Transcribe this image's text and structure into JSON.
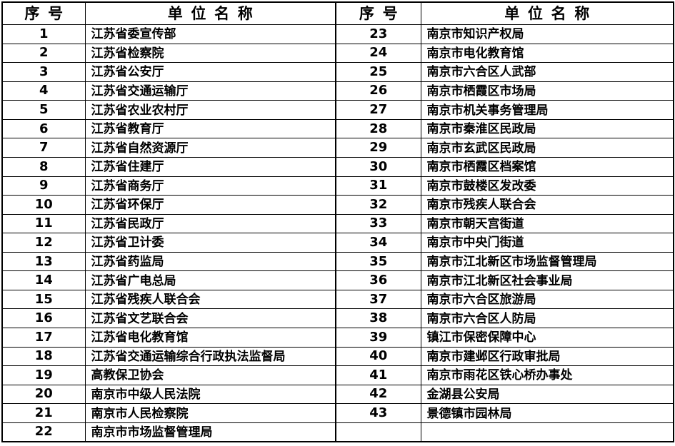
{
  "page": {
    "background_color": "#ffffff",
    "border_color": "#000000",
    "text_color": "#000000"
  },
  "table": {
    "header": {
      "seq_label": "序  号",
      "unit_label": "单  位  名  称"
    },
    "rows": [
      {
        "l_no": "1",
        "l_name": "江苏省委宣传部",
        "r_no": "23",
        "r_name": "南京市知识产权局"
      },
      {
        "l_no": "2",
        "l_name": "江苏省检察院",
        "r_no": "24",
        "r_name": "南京市电化教育馆"
      },
      {
        "l_no": "3",
        "l_name": "江苏省公安厅",
        "r_no": "25",
        "r_name": "南京市六合区人武部"
      },
      {
        "l_no": "4",
        "l_name": "江苏省交通运输厅",
        "r_no": "26",
        "r_name": "南京市栖霞区市场局"
      },
      {
        "l_no": "5",
        "l_name": "江苏省农业农村厅",
        "r_no": "27",
        "r_name": "南京市机关事务管理局"
      },
      {
        "l_no": "6",
        "l_name": "江苏省教育厅",
        "r_no": "28",
        "r_name": "南京市秦淮区民政局"
      },
      {
        "l_no": "7",
        "l_name": "江苏省自然资源厅",
        "r_no": "29",
        "r_name": "南京市玄武区民政局"
      },
      {
        "l_no": "8",
        "l_name": "江苏省住建厅",
        "r_no": "30",
        "r_name": "南京市栖霞区档案馆"
      },
      {
        "l_no": "9",
        "l_name": "江苏省商务厅",
        "r_no": "31",
        "r_name": "南京市鼓楼区发改委"
      },
      {
        "l_no": "10",
        "l_name": "江苏省环保厅",
        "r_no": "32",
        "r_name": "南京市残疾人联合会"
      },
      {
        "l_no": "11",
        "l_name": "江苏省民政厅",
        "r_no": "33",
        "r_name": "南京市朝天宫街道"
      },
      {
        "l_no": "12",
        "l_name": "江苏省卫计委",
        "r_no": "34",
        "r_name": "南京市中央门街道"
      },
      {
        "l_no": "13",
        "l_name": "江苏省药监局",
        "r_no": "35",
        "r_name": "南京市江北新区市场监督管理局"
      },
      {
        "l_no": "14",
        "l_name": "江苏省广电总局",
        "r_no": "36",
        "r_name": "南京市江北新区社会事业局"
      },
      {
        "l_no": "15",
        "l_name": "江苏省残疾人联合会",
        "r_no": "37",
        "r_name": "南京市六合区旅游局"
      },
      {
        "l_no": "16",
        "l_name": "江苏省文艺联合会",
        "r_no": "38",
        "r_name": "南京市六合区人防局"
      },
      {
        "l_no": "17",
        "l_name": "江苏省电化教育馆",
        "r_no": "39",
        "r_name": "镇江市保密保障中心"
      },
      {
        "l_no": "18",
        "l_name": "江苏省交通运输综合行政执法监督局",
        "r_no": "40",
        "r_name": "南京市建邺区行政审批局"
      },
      {
        "l_no": "19",
        "l_name": "高教保卫协会",
        "r_no": "41",
        "r_name": "南京市雨花区铁心桥办事处"
      },
      {
        "l_no": "20",
        "l_name": "南京市中级人民法院",
        "r_no": "42",
        "r_name": "金湖县公安局"
      },
      {
        "l_no": "21",
        "l_name": "南京市人民检察院",
        "r_no": "43",
        "r_name": "景德镇市园林局"
      },
      {
        "l_no": "22",
        "l_name": "南京市市场监督管理局",
        "r_no": "",
        "r_name": ""
      }
    ]
  }
}
